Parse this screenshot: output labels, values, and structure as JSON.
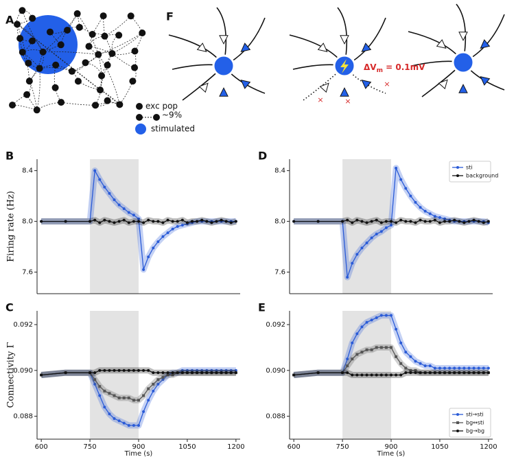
{
  "diagram_a": {
    "panel": "A",
    "legend": [
      "exc pop",
      "~9%",
      "stimulated"
    ]
  },
  "diagram_f": {
    "panel": "F",
    "delta_v": "ΔV",
    "delta_v_sub": "m",
    "delta_v_rest": " = 0.1mV"
  },
  "chart_data": [
    {
      "type": "line",
      "panel": "B",
      "ylabel": "Firing rate (Hz)",
      "x": [
        600,
        675,
        750,
        765,
        780,
        795,
        810,
        825,
        840,
        855,
        870,
        885,
        900,
        915,
        930,
        945,
        960,
        975,
        990,
        1005,
        1020,
        1035,
        1050,
        1065,
        1080,
        1095,
        1110,
        1125,
        1140,
        1155,
        1170,
        1185,
        1200
      ],
      "xlim": [
        587,
        1213
      ],
      "ylim": [
        7.43,
        8.49
      ],
      "yticks": [
        7.6,
        {
          "value": 8,
          "label": "8.0"
        },
        8.4
      ],
      "stim_window": [
        750,
        900
      ],
      "legend": false,
      "series": [
        {
          "name": "sti",
          "color": "#2a5bd7",
          "marker": "circle",
          "values": [
            8.0,
            8.0,
            8.0,
            8.4,
            8.33,
            8.27,
            8.22,
            8.17,
            8.13,
            8.1,
            8.07,
            8.05,
            8.02,
            7.62,
            7.72,
            7.79,
            7.84,
            7.88,
            7.91,
            7.94,
            7.96,
            7.97,
            7.98,
            7.99,
            8.0,
            8.0,
            8.0,
            8.0,
            8.0,
            8.0,
            8.0,
            8.0,
            8.0
          ]
        },
        {
          "name": "background",
          "color": "#111111",
          "marker": "circle",
          "values": [
            8.0,
            8.0,
            8.0,
            8.01,
            7.99,
            8.01,
            8.0,
            7.99,
            8.0,
            8.01,
            7.99,
            8.0,
            8.0,
            7.99,
            8.01,
            8.0,
            8.0,
            7.99,
            8.01,
            8.0,
            8.0,
            8.01,
            7.99,
            8.0,
            8.0,
            8.01,
            8.0,
            7.99,
            8.0,
            8.01,
            8.0,
            7.99,
            8.0
          ]
        }
      ]
    },
    {
      "type": "line",
      "panel": "C",
      "ylabel": "Connectivity Γ",
      "xlabel": "Time (s)",
      "x": [
        600,
        675,
        750,
        765,
        780,
        795,
        810,
        825,
        840,
        855,
        870,
        885,
        900,
        915,
        930,
        945,
        960,
        975,
        990,
        1005,
        1020,
        1035,
        1050,
        1065,
        1080,
        1095,
        1110,
        1125,
        1140,
        1155,
        1170,
        1185,
        1200
      ],
      "xlim": [
        587,
        1213
      ],
      "xticks": [
        600,
        750,
        900,
        1050,
        1200
      ],
      "ylim": [
        0.087,
        0.0926
      ],
      "yticks": [
        0.088,
        {
          "value": 0.09,
          "label": "0.090"
        },
        0.092
      ],
      "stim_window": [
        750,
        900
      ],
      "legend": false,
      "series": [
        {
          "name": "sti→sti",
          "color": "#2a5bd7",
          "marker": "circle",
          "values": [
            0.0898,
            0.0899,
            0.0899,
            0.0894,
            0.0889,
            0.0884,
            0.0881,
            0.0879,
            0.0878,
            0.0877,
            0.0876,
            0.0876,
            0.0876,
            0.0882,
            0.0887,
            0.0891,
            0.0894,
            0.0896,
            0.0898,
            0.0899,
            0.0899,
            0.09,
            0.09,
            0.09,
            0.09,
            0.09,
            0.09,
            0.09,
            0.09,
            0.09,
            0.09,
            0.09,
            0.09
          ]
        },
        {
          "name": "bg↔sti",
          "color": "#555555",
          "marker": "square",
          "values": [
            0.0898,
            0.0899,
            0.0899,
            0.0896,
            0.0893,
            0.0891,
            0.089,
            0.0889,
            0.0888,
            0.0888,
            0.0888,
            0.0887,
            0.0887,
            0.0889,
            0.0892,
            0.0894,
            0.0896,
            0.0897,
            0.0898,
            0.0898,
            0.0899,
            0.0899,
            0.0899,
            0.0899,
            0.0899,
            0.0899,
            0.0899,
            0.0899,
            0.0899,
            0.0899,
            0.0899,
            0.0899,
            0.0899
          ]
        },
        {
          "name": "bg→bg",
          "color": "#111111",
          "marker": "circle",
          "values": [
            0.0898,
            0.0899,
            0.0899,
            0.0899,
            0.09,
            0.09,
            0.09,
            0.09,
            0.09,
            0.09,
            0.09,
            0.09,
            0.09,
            0.09,
            0.09,
            0.0899,
            0.0899,
            0.0899,
            0.0899,
            0.0899,
            0.0899,
            0.0899,
            0.0899,
            0.0899,
            0.0899,
            0.0899,
            0.0899,
            0.0899,
            0.0899,
            0.0899,
            0.0899,
            0.0899,
            0.0899
          ]
        }
      ]
    },
    {
      "type": "line",
      "panel": "D",
      "x": [
        600,
        675,
        750,
        765,
        780,
        795,
        810,
        825,
        840,
        855,
        870,
        885,
        900,
        915,
        930,
        945,
        960,
        975,
        990,
        1005,
        1020,
        1035,
        1050,
        1065,
        1080,
        1095,
        1110,
        1125,
        1140,
        1155,
        1170,
        1185,
        1200
      ],
      "xlim": [
        587,
        1213
      ],
      "ylim": [
        7.43,
        8.49
      ],
      "yticks": [
        7.6,
        {
          "value": 8,
          "label": "8.0"
        },
        8.4
      ],
      "stim_window": [
        750,
        900
      ],
      "legend": "upper right",
      "series": [
        {
          "name": "sti",
          "color": "#2a5bd7",
          "marker": "circle",
          "values": [
            8.0,
            8.0,
            8.0,
            7.56,
            7.67,
            7.74,
            7.79,
            7.83,
            7.87,
            7.9,
            7.92,
            7.95,
            7.97,
            8.42,
            8.33,
            8.26,
            8.2,
            8.15,
            8.11,
            8.08,
            8.06,
            8.04,
            8.03,
            8.02,
            8.01,
            8.0,
            8.0,
            8.0,
            8.0,
            8.0,
            8.0,
            8.0,
            7.99
          ]
        },
        {
          "name": "background",
          "color": "#111111",
          "marker": "circle",
          "values": [
            8.0,
            8.0,
            8.0,
            8.01,
            7.99,
            8.01,
            8.0,
            7.99,
            8.0,
            8.01,
            7.99,
            8.0,
            8.0,
            7.99,
            8.01,
            8.0,
            8.0,
            7.99,
            8.01,
            8.0,
            8.0,
            8.01,
            7.99,
            8.0,
            8.0,
            8.01,
            8.0,
            7.99,
            8.0,
            8.01,
            8.0,
            7.99,
            8.0
          ]
        }
      ]
    },
    {
      "type": "line",
      "panel": "E",
      "xlabel": "Time (s)",
      "x": [
        600,
        675,
        750,
        765,
        780,
        795,
        810,
        825,
        840,
        855,
        870,
        885,
        900,
        915,
        930,
        945,
        960,
        975,
        990,
        1005,
        1020,
        1035,
        1050,
        1065,
        1080,
        1095,
        1110,
        1125,
        1140,
        1155,
        1170,
        1185,
        1200
      ],
      "xlim": [
        587,
        1213
      ],
      "xticks": [
        600,
        750,
        900,
        1050,
        1200
      ],
      "ylim": [
        0.087,
        0.0926
      ],
      "yticks": [
        0.088,
        {
          "value": 0.09,
          "label": "0.090"
        },
        0.092
      ],
      "stim_window": [
        750,
        900
      ],
      "legend": "lower right",
      "series": [
        {
          "name": "sti→sti",
          "color": "#2a5bd7",
          "marker": "circle",
          "values": [
            0.0898,
            0.0899,
            0.0899,
            0.0905,
            0.0912,
            0.0916,
            0.0919,
            0.0921,
            0.0922,
            0.0923,
            0.0924,
            0.0924,
            0.0924,
            0.0918,
            0.0912,
            0.0908,
            0.0906,
            0.0904,
            0.0903,
            0.0902,
            0.0902,
            0.0901,
            0.0901,
            0.0901,
            0.0901,
            0.0901,
            0.0901,
            0.0901,
            0.0901,
            0.0901,
            0.0901,
            0.0901,
            0.0901
          ]
        },
        {
          "name": "bg↔sti",
          "color": "#555555",
          "marker": "square",
          "values": [
            0.0898,
            0.0899,
            0.0899,
            0.0902,
            0.0905,
            0.0907,
            0.0908,
            0.0909,
            0.0909,
            0.091,
            0.091,
            0.091,
            0.091,
            0.0906,
            0.0903,
            0.0901,
            0.09,
            0.09,
            0.0899,
            0.0899,
            0.0899,
            0.0899,
            0.0899,
            0.0899,
            0.0899,
            0.0899,
            0.0899,
            0.0899,
            0.0899,
            0.0899,
            0.0899,
            0.0899,
            0.0899
          ]
        },
        {
          "name": "bg→bg",
          "color": "#111111",
          "marker": "circle",
          "values": [
            0.0898,
            0.0899,
            0.0899,
            0.0899,
            0.0898,
            0.0898,
            0.0898,
            0.0898,
            0.0898,
            0.0898,
            0.0898,
            0.0898,
            0.0898,
            0.0898,
            0.0898,
            0.0899,
            0.0899,
            0.0899,
            0.0899,
            0.0899,
            0.0899,
            0.0899,
            0.0899,
            0.0899,
            0.0899,
            0.0899,
            0.0899,
            0.0899,
            0.0899,
            0.0899,
            0.0899,
            0.0899,
            0.0899
          ]
        }
      ]
    }
  ]
}
